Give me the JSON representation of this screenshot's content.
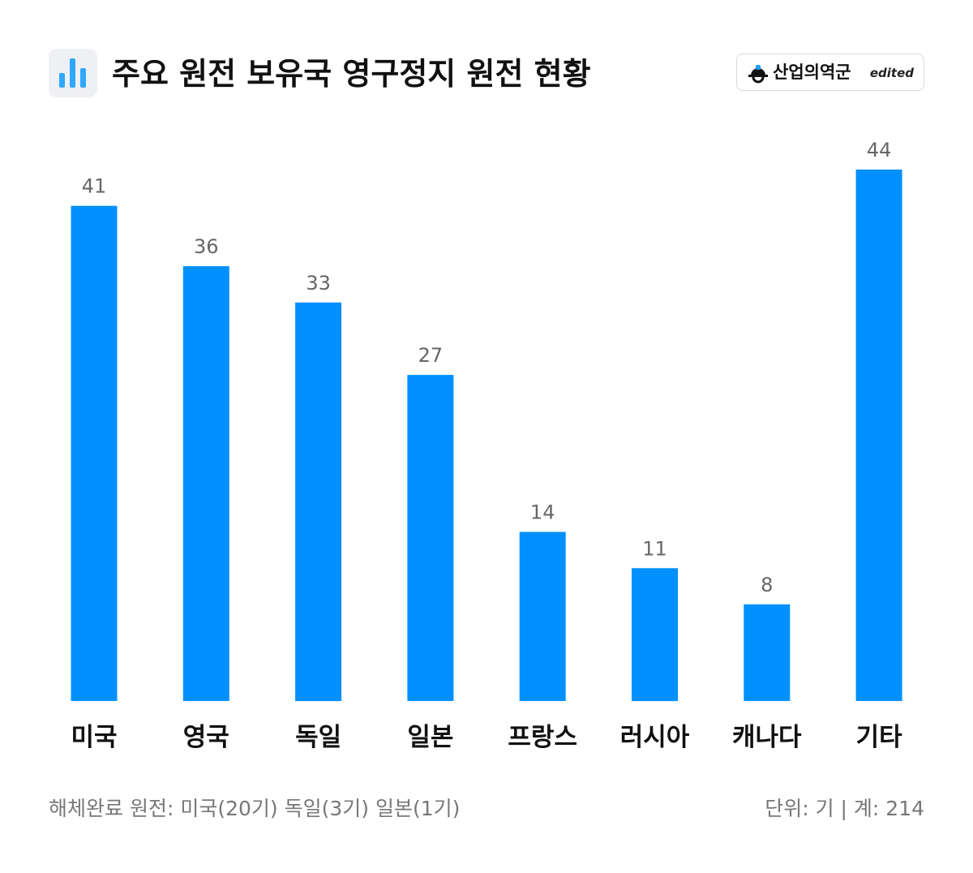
{
  "header": {
    "title": "주요 원전 보유국 영구정지 원전 현황",
    "icon": "bar-chart-icon",
    "brand_name": "산업의역군",
    "brand_tag": "edited",
    "brand_icon": "helmet-gear-logo"
  },
  "colors": {
    "bar": "#0090ff",
    "value_label": "#666666",
    "category_label": "#111111",
    "icon_bg": "#eef0f3",
    "icon_bar": "#2fa8ff"
  },
  "chart_data": {
    "type": "bar",
    "categories": [
      "미국",
      "영국",
      "독일",
      "일본",
      "프랑스",
      "러시아",
      "캐나다",
      "기타"
    ],
    "values": [
      41,
      36,
      33,
      27,
      14,
      11,
      8,
      44
    ],
    "title": "주요 원전 보유국 영구정지 원전 현황",
    "xlabel": "",
    "ylabel": "",
    "ylim": [
      0,
      44
    ],
    "grid": false,
    "legend": "none",
    "data_labels": true
  },
  "footer": {
    "note": "해체완료 원전: 미국(20기) 독일(3기) 일본(1기)",
    "unit_total": "단위: 기 | 계: 214"
  }
}
